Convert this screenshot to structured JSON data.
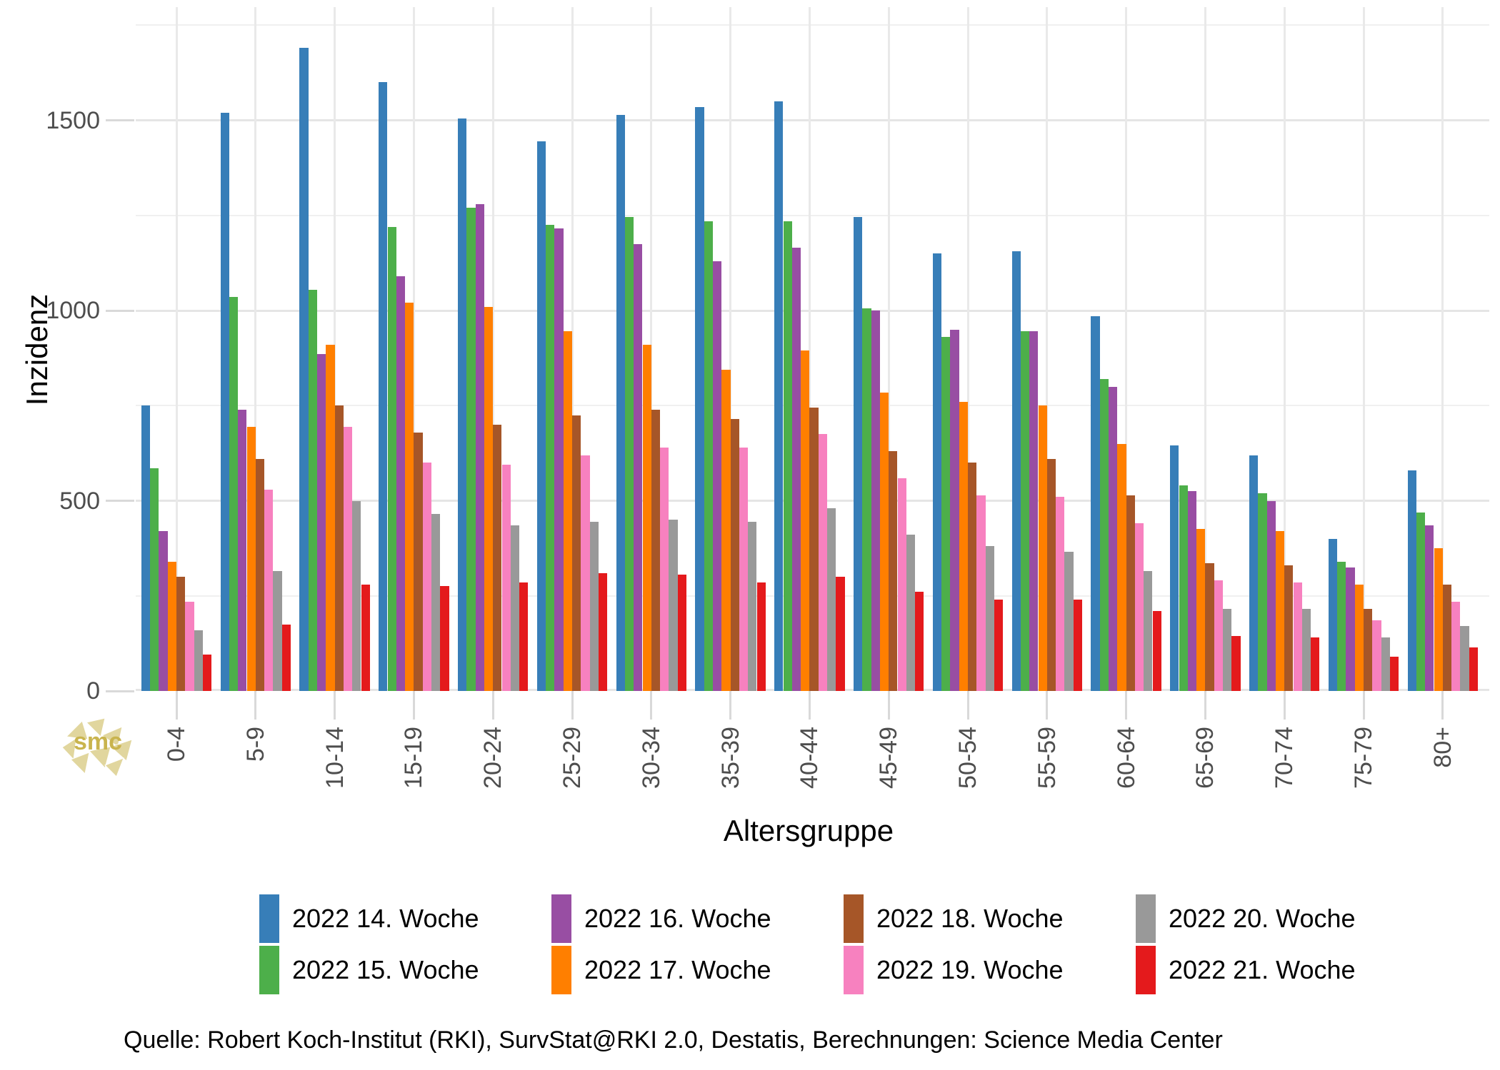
{
  "y_axis": {
    "title": "Inzidenz",
    "tick_labels": [
      "0",
      "500",
      "1000",
      "1500"
    ],
    "tick_values": [
      0,
      500,
      1000,
      1500
    ],
    "minor_gridlines": [
      250,
      750,
      1250,
      1750
    ]
  },
  "x_axis": {
    "title": "Altersgruppe"
  },
  "source_line": "Quelle: Robert Koch-Institut (RKI), SurvStat@RKI 2.0, Destatis, Berechnungen: Science Media Center",
  "logo": {
    "text": "smc",
    "color": "#c9b44e"
  },
  "chart_data": {
    "type": "bar",
    "title": "",
    "xlabel": "Altersgruppe",
    "ylabel": "Inzidenz",
    "ylim": [
      0,
      1800
    ],
    "grid": "major+minor",
    "legend_position": "bottom",
    "categories": [
      "0-4",
      "5-9",
      "10-14",
      "15-19",
      "20-24",
      "25-29",
      "30-34",
      "35-39",
      "40-44",
      "45-49",
      "50-54",
      "55-59",
      "60-64",
      "65-69",
      "70-74",
      "75-79",
      "80+"
    ],
    "series": [
      {
        "name": "2022 14. Woche",
        "color": "#377EB8",
        "values": [
          750,
          1520,
          1690,
          1600,
          1505,
          1445,
          1515,
          1535,
          1550,
          1245,
          1150,
          1155,
          985,
          645,
          620,
          400,
          580
        ]
      },
      {
        "name": "2022 15. Woche",
        "color": "#4DAF4A",
        "values": [
          585,
          1035,
          1055,
          1220,
          1270,
          1225,
          1245,
          1235,
          1235,
          1005,
          930,
          945,
          820,
          540,
          520,
          340,
          470
        ]
      },
      {
        "name": "2022 16. Woche",
        "color": "#984EA3",
        "values": [
          420,
          740,
          885,
          1090,
          1280,
          1215,
          1175,
          1130,
          1165,
          1000,
          950,
          945,
          800,
          525,
          500,
          325,
          435
        ]
      },
      {
        "name": "2022 17. Woche",
        "color": "#FF7F00",
        "values": [
          340,
          695,
          910,
          1020,
          1010,
          945,
          910,
          845,
          895,
          785,
          760,
          750,
          650,
          425,
          420,
          280,
          375
        ]
      },
      {
        "name": "2022 18. Woche",
        "color": "#A65628",
        "values": [
          300,
          610,
          750,
          680,
          700,
          725,
          740,
          715,
          745,
          630,
          600,
          610,
          515,
          335,
          330,
          215,
          280
        ]
      },
      {
        "name": "2022 19. Woche",
        "color": "#F781BF",
        "values": [
          235,
          530,
          695,
          600,
          595,
          620,
          640,
          640,
          675,
          560,
          515,
          510,
          440,
          290,
          285,
          185,
          235
        ]
      },
      {
        "name": "2022 20. Woche",
        "color": "#999999",
        "values": [
          160,
          315,
          500,
          465,
          435,
          445,
          450,
          445,
          480,
          410,
          380,
          365,
          315,
          215,
          215,
          140,
          170
        ]
      },
      {
        "name": "2022 21. Woche",
        "color": "#E41A1C",
        "values": [
          95,
          175,
          280,
          275,
          285,
          310,
          305,
          285,
          300,
          260,
          240,
          240,
          210,
          145,
          140,
          90,
          115
        ]
      }
    ]
  }
}
